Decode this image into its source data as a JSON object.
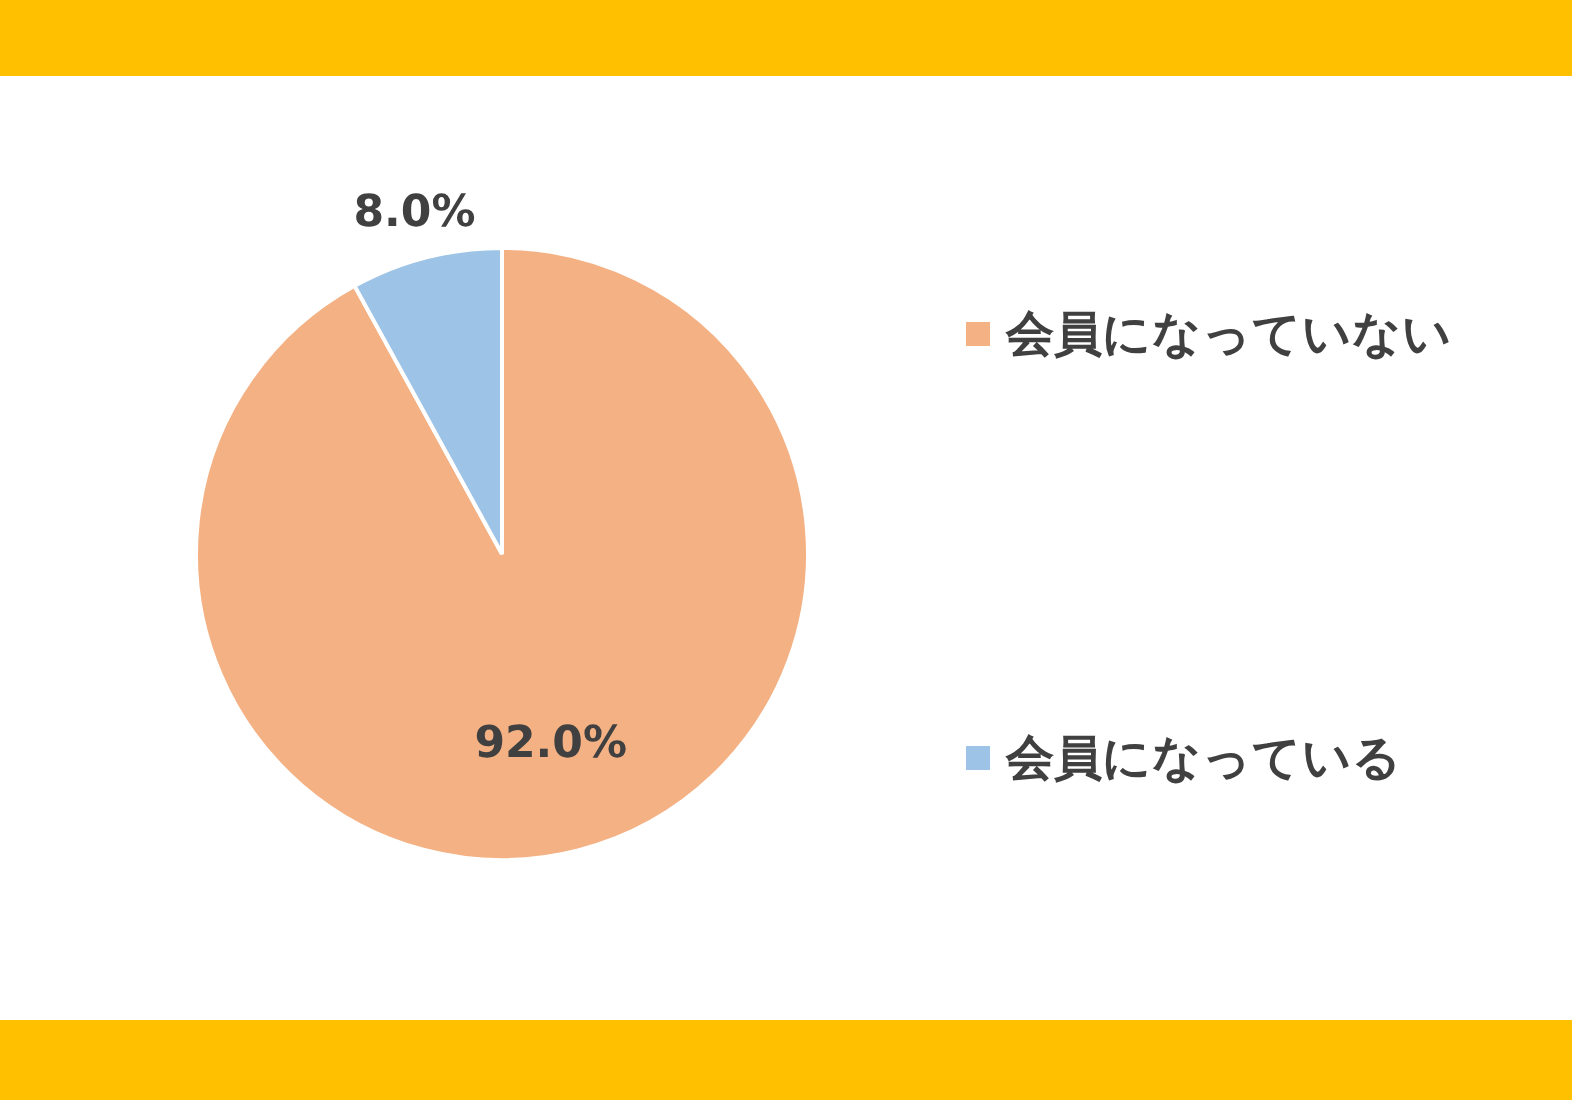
{
  "chart_data": {
    "type": "pie",
    "categories": [
      "会員になっていない",
      "会員になっている"
    ],
    "values": [
      92.0,
      8.0
    ],
    "colors": [
      "#f4b183",
      "#9dc3e6"
    ],
    "value_labels": [
      "92.0%",
      "8.0%"
    ],
    "legend": "right"
  }
}
